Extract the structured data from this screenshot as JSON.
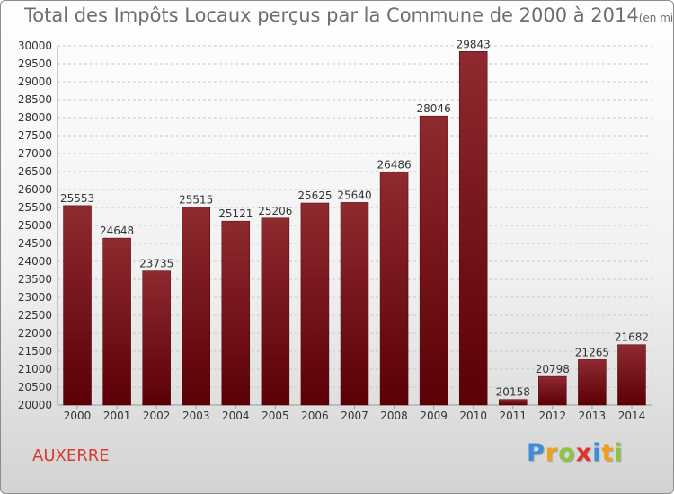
{
  "chart_data": {
    "type": "bar",
    "title": "Total des Impôts Locaux perçus par la Commune de 2000 à 2014",
    "unit_label": "(en milliers d'€)",
    "categories": [
      "2000",
      "2001",
      "2002",
      "2003",
      "2004",
      "2005",
      "2006",
      "2007",
      "2008",
      "2009",
      "2010",
      "2011",
      "2012",
      "2013",
      "2014"
    ],
    "values": [
      25553,
      24648,
      23735,
      25515,
      25121,
      25206,
      25625,
      25640,
      26486,
      28046,
      29843,
      20158,
      20798,
      21265,
      21682
    ],
    "ylim": [
      20000,
      30000
    ],
    "yticks": [
      20000,
      20500,
      21000,
      21500,
      22000,
      22500,
      23000,
      23500,
      24000,
      24500,
      25000,
      25500,
      26000,
      26500,
      27000,
      27500,
      28000,
      28500,
      29000,
      29500,
      30000
    ],
    "grid": true,
    "xlabel": "",
    "ylabel": "",
    "bar_color": "#7a1c22"
  },
  "commune": "AUXERRE",
  "logo": {
    "letters": [
      "P",
      "r",
      "o",
      "x",
      "i",
      "t",
      "i"
    ],
    "colors": [
      "#3c8fd6",
      "#f0a01e",
      "#8cc63e",
      "#e0322b",
      "#3c8fd6",
      "#f0a01e",
      "#8cc63e"
    ]
  }
}
